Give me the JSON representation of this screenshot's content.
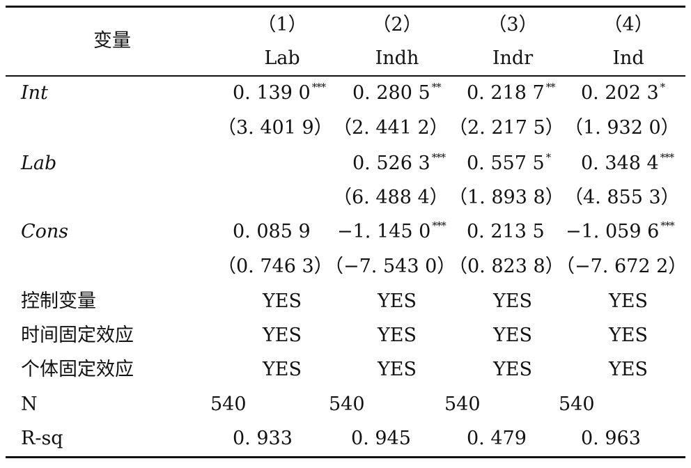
{
  "header": {
    "variable_label": "变量",
    "columns": [
      {
        "num": "（1）",
        "name": "Lab"
      },
      {
        "num": "（2）",
        "name": "Indh"
      },
      {
        "num": "（3）",
        "name": "Indr"
      },
      {
        "num": "（4）",
        "name": "Ind"
      }
    ]
  },
  "rows": {
    "int": {
      "label": "Int",
      "coefs": [
        {
          "v": "0. 139 0",
          "s": "***"
        },
        {
          "v": "0. 280 5",
          "s": "**"
        },
        {
          "v": "0. 218 7",
          "s": "**"
        },
        {
          "v": "0. 202 3",
          "s": "*"
        }
      ],
      "t": [
        "（3. 401 9）",
        "（2. 441 2）",
        "（2. 217 5）",
        "（1. 932 0）"
      ]
    },
    "lab": {
      "label": "Lab",
      "coefs": [
        {
          "v": "0. 526 3",
          "s": "***"
        },
        {
          "v": "0. 557 5",
          "s": "*"
        },
        {
          "v": "0. 348 4",
          "s": "***"
        }
      ],
      "t": [
        "（6. 488 4）",
        "（1. 893 8）",
        "（4. 855 3）"
      ]
    },
    "cons": {
      "label": "Cons",
      "coefs": [
        {
          "v": "0. 085 9",
          "s": ""
        },
        {
          "v": "−1. 145 0",
          "s": "***"
        },
        {
          "v": "0. 213 5",
          "s": ""
        },
        {
          "v": "−1. 059 6",
          "s": "***"
        }
      ],
      "t": [
        "（0. 746 3）",
        "（−7. 543 0）",
        "（0. 823 8）",
        "（−7. 672 2）"
      ]
    },
    "controls": {
      "label": "控制变量",
      "values": [
        "YES",
        "YES",
        "YES",
        "YES"
      ]
    },
    "time_fe": {
      "label": "时间固定效应",
      "values": [
        "YES",
        "YES",
        "YES",
        "YES"
      ]
    },
    "indiv_fe": {
      "label": "个体固定效应",
      "values": [
        "YES",
        "YES",
        "YES",
        "YES"
      ]
    },
    "n": {
      "label": "N",
      "values": [
        "540",
        "540",
        "540",
        "540"
      ]
    },
    "rsq": {
      "label": "R-sq",
      "values": [
        "0. 933",
        "0. 945",
        "0. 479",
        "0. 963"
      ]
    }
  }
}
